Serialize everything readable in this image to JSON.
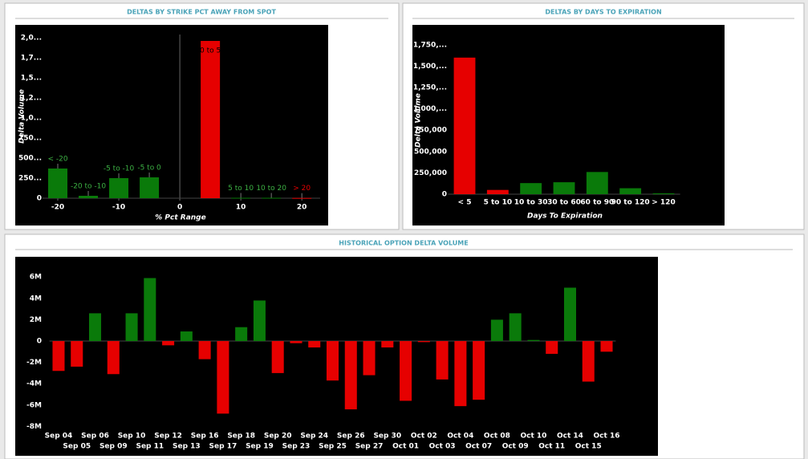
{
  "chart_data": [
    {
      "type": "bar",
      "title": "DELTAS BY STRIKE PCT AWAY FROM SPOT",
      "x_label": "% Pct Range",
      "y_label": "Delta Volume",
      "x": [
        -20,
        -15,
        -10,
        -5,
        5,
        10,
        15,
        20
      ],
      "labels": [
        "< -20",
        "-20 to -10",
        "-5 to -10",
        "-5 to 0",
        "0 to 5",
        "5 to 10",
        "10 to 20",
        "> 20"
      ],
      "values": [
        370,
        30,
        250,
        260,
        1960,
        5,
        5,
        3
      ],
      "colors": [
        "#0a7a0a",
        "#0a7a0a",
        "#0a7a0a",
        "#0a7a0a",
        "#e60000",
        "#0a7a0a",
        "#0a7a0a",
        "#e60000"
      ],
      "xlim": [
        -22.5,
        23
      ],
      "xticks": [
        -20,
        -10,
        0,
        10,
        20
      ],
      "ylim": [
        0,
        2000
      ],
      "yticks": [
        0,
        {
          "value": 250,
          "label": "250..."
        },
        {
          "value": 500,
          "label": "500..."
        },
        {
          "value": 750,
          "label": "750..."
        },
        {
          "value": 1000,
          "label": "1,0..."
        },
        {
          "value": 1250,
          "label": "1,2..."
        },
        {
          "value": 1500,
          "label": "1,5..."
        },
        {
          "value": 1750,
          "label": "1,7..."
        },
        {
          "value": 2000,
          "label": "2,0..."
        }
      ]
    },
    {
      "type": "bar",
      "title": "DELTAS BY DAYS TO EXPIRATION",
      "x_label": "Days To Expiration",
      "y_label": "Delta Volume",
      "categories": [
        "< 5",
        "5 to 10",
        "10 to 30",
        "30 to 60",
        "60 to 90",
        "90 to 120",
        "> 120"
      ],
      "values": [
        1600000,
        50000,
        130000,
        140000,
        260000,
        70000,
        10000
      ],
      "colors": [
        "#e60000",
        "#e60000",
        "#0a7a0a",
        "#0a7a0a",
        "#0a7a0a",
        "#0a7a0a",
        "#0a7a0a"
      ],
      "ylim": [
        0,
        1850000
      ],
      "yticks": [
        0,
        {
          "value": 250000,
          "label": "250,000"
        },
        {
          "value": 500000,
          "label": "500,000"
        },
        {
          "value": 750000,
          "label": "750,000"
        },
        {
          "value": 1000000,
          "label": "1,000,..."
        },
        {
          "value": 1250000,
          "label": "1,250,..."
        },
        {
          "value": 1500000,
          "label": "1,500,..."
        },
        {
          "value": 1750000,
          "label": "1,750,..."
        }
      ]
    },
    {
      "type": "bar",
      "title": "HISTORICAL OPTION DELTA VOLUME",
      "categories": [
        "Sep 04",
        "Sep 05",
        "Sep 06",
        "Sep 09",
        "Sep 10",
        "Sep 11",
        "Sep 12",
        "Sep 13",
        "Sep 16",
        "Sep 17",
        "Sep 18",
        "Sep 19",
        "Sep 20",
        "Sep 23",
        "Sep 24",
        "Sep 25",
        "Sep 26",
        "Sep 27",
        "Sep 30",
        "Oct 01",
        "Oct 02",
        "Oct 03",
        "Oct 04",
        "Oct 07",
        "Oct 08",
        "Oct 09",
        "Oct 10",
        "Oct 11",
        "Oct 14",
        "Oct 15",
        "Oct 16"
      ],
      "values": [
        -2800000,
        -2400000,
        2600000,
        -3100000,
        2600000,
        5900000,
        -400000,
        900000,
        -1700000,
        -6800000,
        1300000,
        3800000,
        -3000000,
        -200000,
        -600000,
        -3700000,
        -6400000,
        -3200000,
        -600000,
        -5600000,
        -100000,
        -3600000,
        -6100000,
        -5500000,
        2000000,
        2600000,
        100000,
        -1200000,
        5000000,
        -3800000,
        -1000000
      ],
      "up_color": "#0a7a0a",
      "down_color": "#e60000",
      "ylim": [
        -9000000,
        7000000
      ],
      "yticks": [
        {
          "value": -8000000,
          "label": "-8M"
        },
        {
          "value": -6000000,
          "label": "-6M"
        },
        {
          "value": -4000000,
          "label": "-4M"
        },
        {
          "value": -2000000,
          "label": "-2M"
        },
        0,
        {
          "value": 2000000,
          "label": "2M"
        },
        {
          "value": 4000000,
          "label": "4M"
        },
        {
          "value": 6000000,
          "label": "6M"
        }
      ]
    }
  ]
}
